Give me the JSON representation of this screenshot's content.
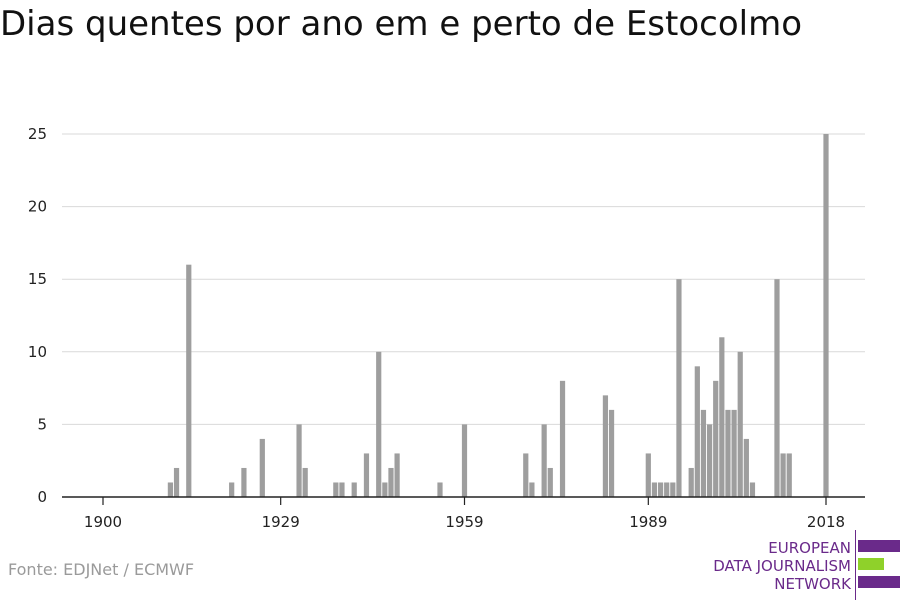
{
  "title": "Dias quentes por ano em e perto de Estocolmo",
  "source": "Fonte: EDJNet / ECMWF",
  "logo": {
    "line1": "EUROPEAN",
    "line2": "DATA JOURNALISM",
    "line3": "NETWORK"
  },
  "colors": {
    "bar": "#9e9e9e",
    "grid": "#d9d9d9",
    "axis": "#222222",
    "logo_purple": "#6a2a8a",
    "logo_green": "#8fd12a"
  },
  "chart_data": {
    "type": "bar",
    "title": "Dias quentes por ano em e perto de Estocolmo",
    "xlabel": "",
    "ylabel": "",
    "ylim": [
      0,
      25
    ],
    "yticks": [
      0,
      5,
      10,
      15,
      20,
      25
    ],
    "xticks": [
      1900,
      1929,
      1959,
      1989,
      2018
    ],
    "xlim": [
      1900,
      2018
    ],
    "grid": true,
    "x": [
      1911,
      1912,
      1914,
      1921,
      1923,
      1926,
      1932,
      1933,
      1938,
      1939,
      1941,
      1943,
      1945,
      1946,
      1947,
      1948,
      1955,
      1959,
      1969,
      1970,
      1972,
      1973,
      1975,
      1982,
      1983,
      1989,
      1990,
      1991,
      1992,
      1993,
      1994,
      1996,
      1997,
      1998,
      1999,
      2000,
      2001,
      2002,
      2003,
      2004,
      2005,
      2006,
      2010,
      2011,
      2012,
      2018
    ],
    "values": [
      1,
      2,
      16,
      1,
      2,
      4,
      5,
      2,
      1,
      1,
      1,
      3,
      10,
      1,
      2,
      3,
      1,
      5,
      3,
      1,
      5,
      2,
      8,
      7,
      6,
      3,
      1,
      1,
      1,
      1,
      15,
      2,
      9,
      6,
      5,
      8,
      11,
      6,
      6,
      10,
      4,
      1,
      15,
      3,
      3,
      25
    ]
  }
}
